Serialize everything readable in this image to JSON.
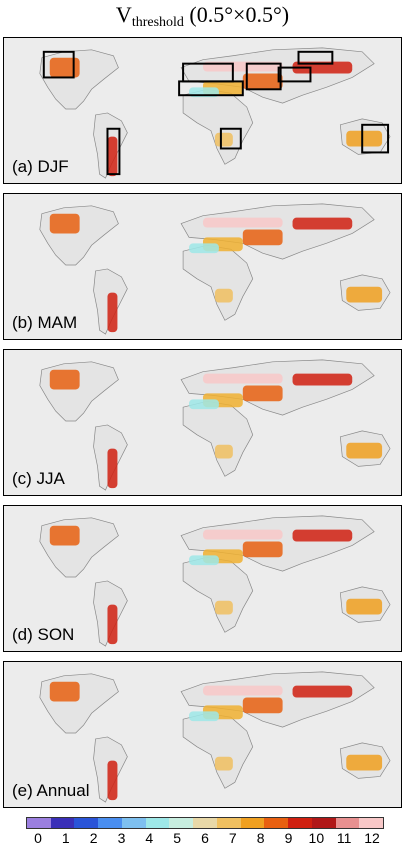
{
  "title_main": "V",
  "title_sub": "threshold",
  "title_tail": " (0.5°×0.5°)",
  "panels": [
    {
      "label": "(a) DJF",
      "boxes": true
    },
    {
      "label": "(b) MAM",
      "boxes": false
    },
    {
      "label": "(c) JJA",
      "boxes": false
    },
    {
      "label": "(d) SON",
      "boxes": false
    },
    {
      "label": "(e) Annual",
      "boxes": false
    }
  ],
  "colorbar": {
    "ticks": [
      "0",
      "1",
      "2",
      "3",
      "4",
      "5",
      "6",
      "7",
      "8",
      "9",
      "10",
      "11",
      "12"
    ],
    "colors": [
      "#9b7fe0",
      "#3a2fb8",
      "#2a54d8",
      "#4a8ef0",
      "#7ec0f0",
      "#9ee8e8",
      "#c8eee0",
      "#e8d8a8",
      "#f0c060",
      "#f0a020",
      "#e86010",
      "#d02010",
      "#b01818",
      "#e89090",
      "#f8c8c8"
    ]
  }
}
